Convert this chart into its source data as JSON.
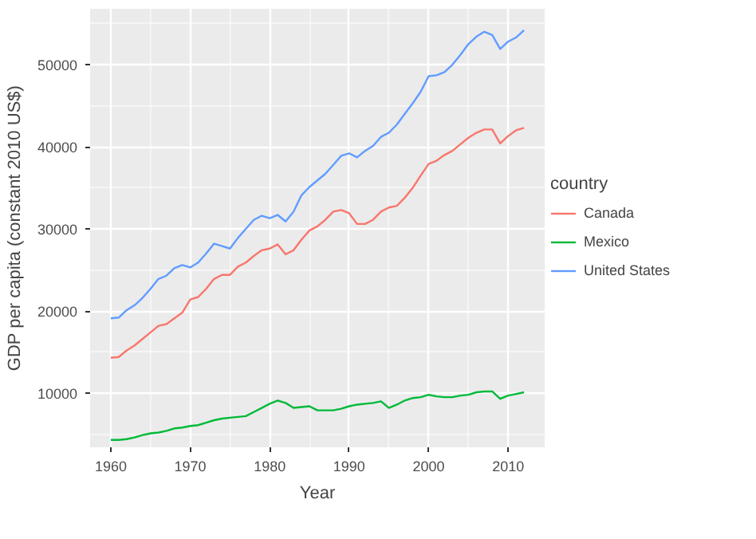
{
  "chart_data": {
    "type": "line",
    "xlabel": "Year",
    "ylabel": "GDP per capita (constant 2010 US$)",
    "legend_title": "country",
    "legend": "right",
    "grid": true,
    "x": [
      1960,
      1961,
      1962,
      1963,
      1964,
      1965,
      1966,
      1967,
      1968,
      1969,
      1970,
      1971,
      1972,
      1973,
      1974,
      1975,
      1976,
      1977,
      1978,
      1979,
      1980,
      1981,
      1982,
      1983,
      1984,
      1985,
      1986,
      1987,
      1988,
      1989,
      1990,
      1991,
      1992,
      1993,
      1994,
      1995,
      1996,
      1997,
      1998,
      1999,
      2000,
      2001,
      2002,
      2003,
      2004,
      2005,
      2006,
      2007,
      2008,
      2009,
      2010,
      2011,
      2012
    ],
    "xlim": [
      1957.4,
      2014.6
    ],
    "xticks": [
      1960,
      1970,
      1980,
      1990,
      2000,
      2010
    ],
    "ylim": [
      3400,
      56800
    ],
    "yticks": [
      10000,
      20000,
      30000,
      40000,
      50000
    ],
    "series": [
      {
        "name": "Canada",
        "color": "#f8766d",
        "values": [
          14300,
          14400,
          15200,
          15800,
          16600,
          17400,
          18200,
          18400,
          19100,
          19800,
          21400,
          21700,
          22700,
          23900,
          24400,
          24400,
          25400,
          25900,
          26700,
          27400,
          27600,
          28100,
          26900,
          27400,
          28700,
          29800,
          30300,
          31100,
          32100,
          32300,
          31900,
          30600,
          30600,
          31100,
          32100,
          32600,
          32800,
          33800,
          35000,
          36500,
          37900,
          38300,
          39000,
          39500,
          40300,
          41100,
          41700,
          42100,
          42100,
          40400,
          41300,
          42000,
          42300
        ]
      },
      {
        "name": "Mexico",
        "color": "#00ba38",
        "values": [
          4300,
          4300,
          4400,
          4600,
          4900,
          5100,
          5200,
          5400,
          5700,
          5800,
          6000,
          6100,
          6400,
          6700,
          6900,
          7000,
          7100,
          7200,
          7700,
          8200,
          8700,
          9100,
          8800,
          8200,
          8300,
          8400,
          7900,
          7900,
          7900,
          8100,
          8400,
          8600,
          8700,
          8800,
          9000,
          8200,
          8600,
          9100,
          9400,
          9500,
          9800,
          9600,
          9500,
          9500,
          9700,
          9800,
          10100,
          10200,
          10200,
          9300,
          9700,
          9900,
          10100
        ]
      },
      {
        "name": "United States",
        "color": "#619cff",
        "values": [
          19100,
          19200,
          20100,
          20700,
          21600,
          22700,
          23900,
          24300,
          25200,
          25600,
          25300,
          25900,
          27000,
          28200,
          27900,
          27600,
          28900,
          30000,
          31100,
          31600,
          31300,
          31700,
          30900,
          32100,
          34100,
          35100,
          35900,
          36700,
          37800,
          38900,
          39200,
          38700,
          39500,
          40100,
          41200,
          41700,
          42700,
          44000,
          45300,
          46700,
          48600,
          48700,
          49100,
          50000,
          51200,
          52500,
          53400,
          54000,
          53600,
          51900,
          52800,
          53300,
          54200
        ]
      }
    ]
  }
}
